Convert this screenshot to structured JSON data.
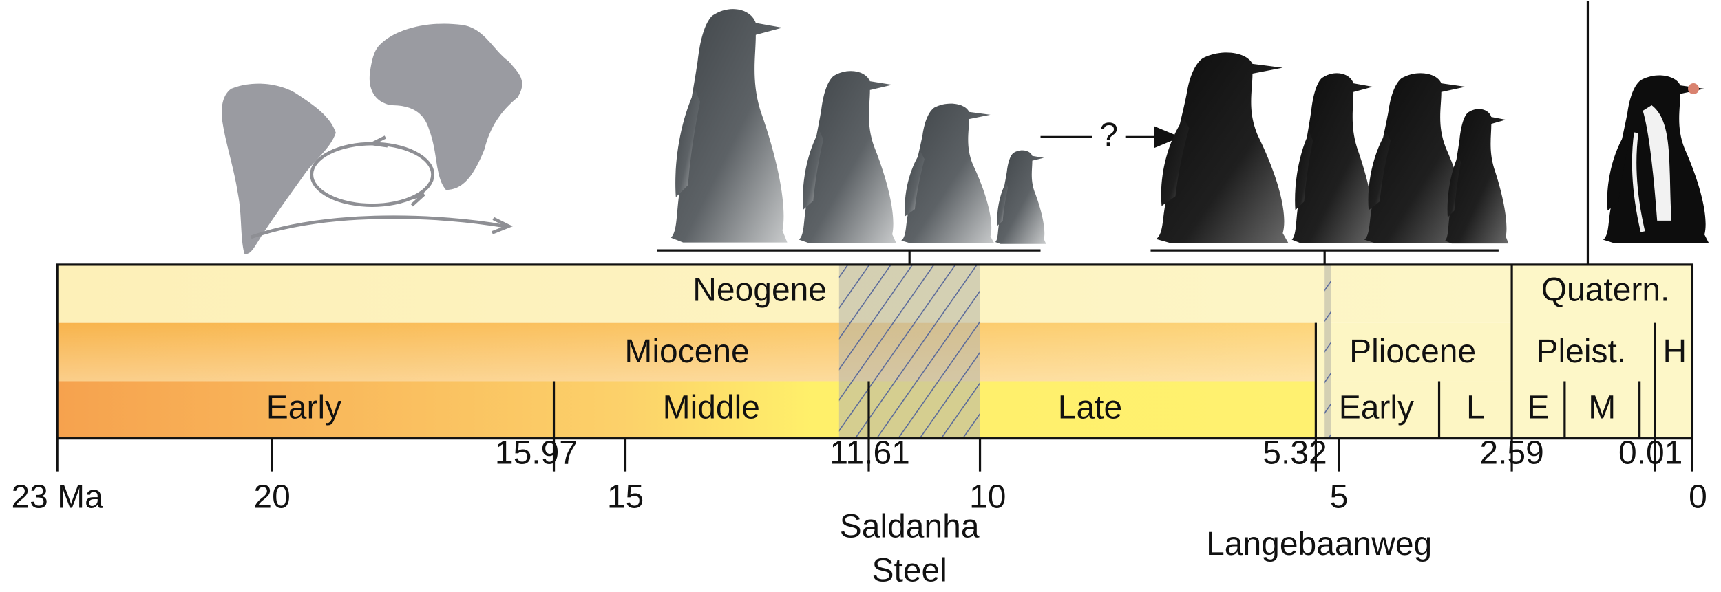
{
  "arrow_label": "?",
  "timescale": {
    "periods": [
      "Neogene",
      "Quatern."
    ],
    "epochs": [
      "Miocene",
      "Pliocene",
      "Pleist.",
      "H"
    ],
    "ages": [
      "Early",
      "Middle",
      "Late",
      "Early",
      "L",
      "E",
      "M"
    ],
    "ticks": [
      "23 Ma",
      20,
      15,
      10,
      5,
      0
    ],
    "boundaries": [
      15.97,
      11.61,
      5.32,
      2.59,
      0.01
    ]
  },
  "sites": [
    [
      "Saldanha",
      "Steel"
    ],
    [
      "Langebaanweg"
    ]
  ]
}
